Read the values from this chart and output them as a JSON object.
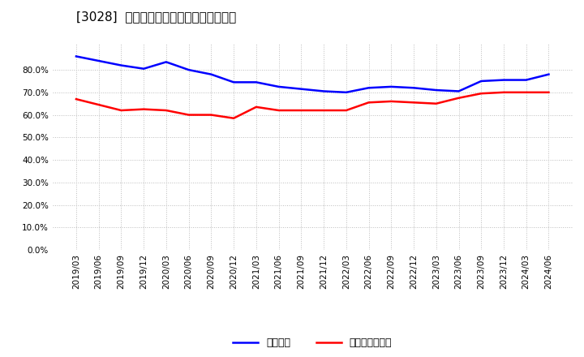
{
  "title": "[3028]  固定比率、固定長期適合率の推移",
  "x_labels": [
    "2019/03",
    "2019/06",
    "2019/09",
    "2019/12",
    "2020/03",
    "2020/06",
    "2020/09",
    "2020/12",
    "2021/03",
    "2021/06",
    "2021/09",
    "2021/12",
    "2022/03",
    "2022/06",
    "2022/09",
    "2022/12",
    "2023/03",
    "2023/06",
    "2023/09",
    "2023/12",
    "2024/03",
    "2024/06"
  ],
  "fixed_ratio": [
    86.0,
    84.0,
    82.0,
    80.5,
    83.5,
    80.0,
    78.0,
    74.5,
    74.5,
    72.5,
    71.5,
    70.5,
    70.0,
    72.0,
    72.5,
    72.0,
    71.0,
    70.5,
    75.0,
    75.5,
    75.5,
    78.0
  ],
  "fixed_long_term_ratio": [
    67.0,
    64.5,
    62.0,
    62.5,
    62.0,
    60.0,
    60.0,
    58.5,
    63.5,
    62.0,
    62.0,
    62.0,
    62.0,
    65.5,
    66.0,
    65.5,
    65.0,
    67.5,
    69.5,
    70.0,
    70.0,
    70.0
  ],
  "line1_color": "#0000ff",
  "line2_color": "#ff0000",
  "line1_label": "固定比率",
  "line2_label": "固定長期適合率",
  "ylim_max": 92.0,
  "yticks": [
    0.0,
    10.0,
    20.0,
    30.0,
    40.0,
    50.0,
    60.0,
    70.0,
    80.0
  ],
  "bg_color": "#ffffff",
  "grid_color": "#bbbbbb",
  "title_fontsize": 11,
  "axis_fontsize": 7.5,
  "legend_fontsize": 9
}
